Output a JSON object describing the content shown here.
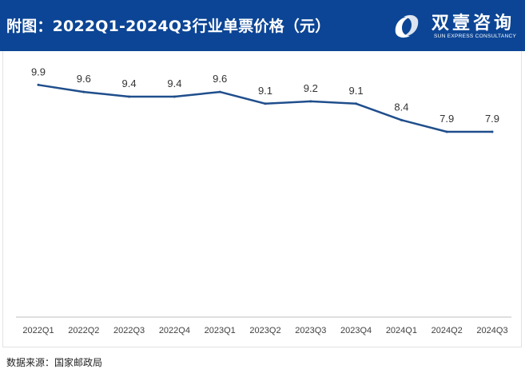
{
  "header": {
    "title": "附图：2022Q1-2024Q3行业单票价格（元）",
    "logo_cn": "双壹咨询",
    "logo_en": "SUN EXPRESS CONSULTANCY",
    "logo_icon": "swirl-logo-icon"
  },
  "colors": {
    "header_bg": "#0c4595",
    "line": "#1f4e8c",
    "axis": "#bfbfbf",
    "text": "#333333"
  },
  "footer": {
    "source": "数据来源：国家邮政局"
  },
  "chart_data": {
    "type": "line",
    "title": "2022Q1-2024Q3行业单票价格（元）",
    "xlabel": "",
    "ylabel": "元",
    "categories": [
      "2022Q1",
      "2022Q2",
      "2022Q3",
      "2022Q4",
      "2023Q1",
      "2023Q2",
      "2023Q3",
      "2023Q4",
      "2024Q1",
      "2024Q2",
      "2024Q3"
    ],
    "series": [
      {
        "name": "行业单票价格",
        "values": [
          9.9,
          9.6,
          9.4,
          9.4,
          9.6,
          9.1,
          9.2,
          9.1,
          8.4,
          7.9,
          7.9
        ],
        "labels": [
          "9.9",
          "9.6",
          "9.4",
          "9.4",
          "9.6",
          "9.1",
          "9.2",
          "9.1",
          "8.4",
          "7.9",
          "7.9"
        ]
      }
    ],
    "ylim": [
      0,
      11
    ],
    "grid": false,
    "legend": "none"
  }
}
